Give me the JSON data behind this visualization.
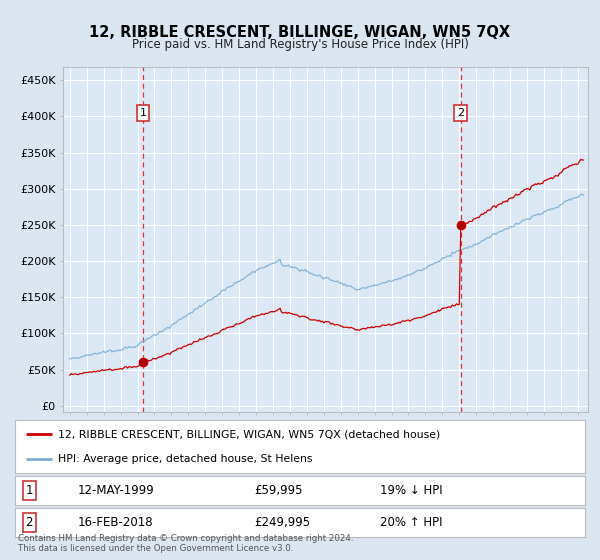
{
  "title": "12, RIBBLE CRESCENT, BILLINGE, WIGAN, WN5 7QX",
  "subtitle": "Price paid vs. HM Land Registry's House Price Index (HPI)",
  "legend_line1": "12, RIBBLE CRESCENT, BILLINGE, WIGAN, WN5 7QX (detached house)",
  "legend_line2": "HPI: Average price, detached house, St Helens",
  "transaction1_date": "12-MAY-1999",
  "transaction1_price": "£59,995",
  "transaction1_hpi": "19% ↓ HPI",
  "transaction2_date": "16-FEB-2018",
  "transaction2_price": "£249,995",
  "transaction2_hpi": "20% ↑ HPI",
  "footer": "Contains HM Land Registry data © Crown copyright and database right 2024.\nThis data is licensed under the Open Government Licence v3.0.",
  "bg_color": "#dce6f0",
  "plot_bg_color": "#dce9f5",
  "red_color": "#cc0000",
  "blue_color": "#7bafd4",
  "yticks": [
    0,
    50000,
    100000,
    150000,
    200000,
    250000,
    300000,
    350000,
    400000,
    450000
  ],
  "ylabels": [
    "£0",
    "£50K",
    "£100K",
    "£150K",
    "£200K",
    "£250K",
    "£300K",
    "£350K",
    "£400K",
    "£450K"
  ]
}
